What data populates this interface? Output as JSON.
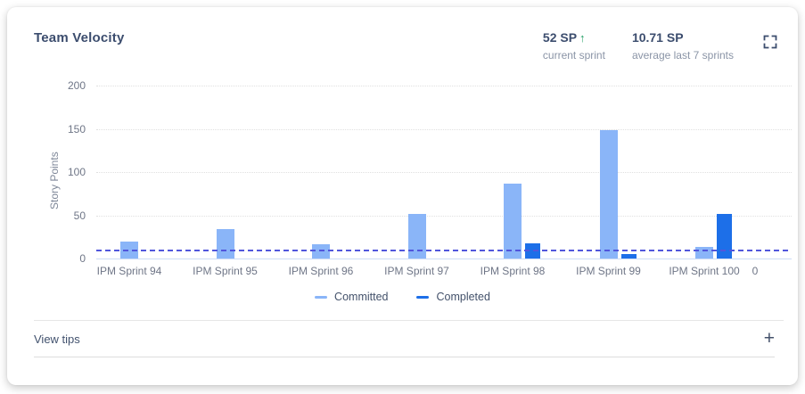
{
  "card": {
    "title": "Team Velocity",
    "stats": [
      {
        "value": "52 SP",
        "trend_icon": "↑",
        "label": "current sprint"
      },
      {
        "value": "10.71 SP",
        "trend_icon": "",
        "label": "average last 7 sprints"
      }
    ],
    "footer": {
      "view_tips_label": "View tips",
      "plus_icon": "+"
    }
  },
  "colors": {
    "committed": "#8ab5f8",
    "completed": "#1d6fe8",
    "average_line": "#5156dc",
    "trend_up_green": "#1f9e62"
  },
  "chart_data": {
    "type": "bar",
    "title": "Team Velocity",
    "xlabel": "",
    "ylabel": "Story Points",
    "categories": [
      "IPM Sprint 94",
      "IPM Sprint 95",
      "IPM Sprint 96",
      "IPM Sprint 97",
      "IPM Sprint 98",
      "IPM Sprint 99",
      "IPM Sprint 100",
      "0"
    ],
    "series": [
      {
        "name": "Committed",
        "color": "#8ab5f8",
        "values": [
          20,
          34,
          16,
          52,
          87,
          148,
          13,
          null
        ]
      },
      {
        "name": "Completed",
        "color": "#1d6fe8",
        "values": [
          0,
          0,
          0,
          0,
          18,
          5,
          52,
          null
        ]
      }
    ],
    "yticks": [
      0,
      50,
      100,
      150,
      200
    ],
    "ylim": [
      0,
      200
    ],
    "grid": true,
    "legend_position": "bottom",
    "average_line": {
      "value": 10.71,
      "style": "dashed",
      "label": "average last 7 sprints"
    }
  }
}
